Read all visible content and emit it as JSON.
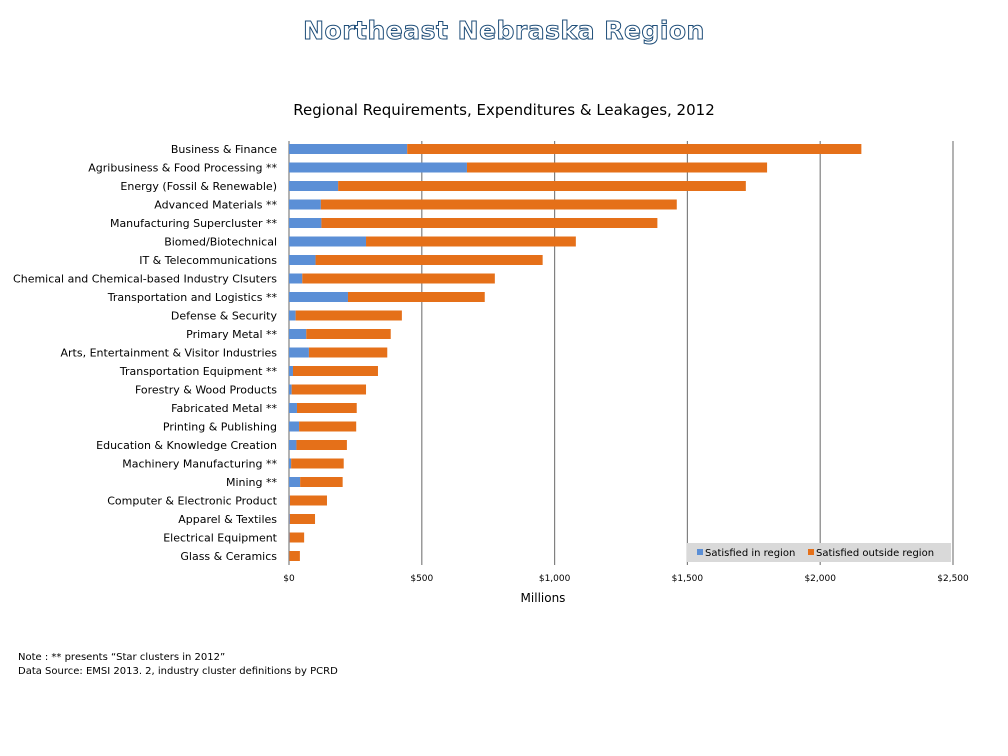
{
  "page": {
    "title": "Northeast Nebraska Region",
    "note": "Note : ** presents  “Star clusters in 2012”",
    "source": "Data Source: EMSI 2013. 2, industry cluster definitions by PCRD"
  },
  "colors": {
    "in_region": "#5b8fd6",
    "outside_region": "#e57019",
    "grid": "#808080"
  },
  "chart_data": {
    "type": "bar",
    "orientation": "horizontal",
    "stacked": true,
    "title": "Regional Requirements, Expenditures & Leakages, 2012",
    "xlabel": "Millions",
    "ylabel": "",
    "xlim": [
      0,
      2500
    ],
    "x_ticks": [
      0,
      500,
      1000,
      1500,
      2000,
      2500
    ],
    "x_tick_labels": [
      "$0",
      "$500",
      "$1,000",
      "$1,500",
      "$2,000",
      "$2,500"
    ],
    "grid": "vertical major gridlines",
    "legend_position": "bottom-right",
    "categories": [
      "Business & Finance",
      "Agribusiness & Food Processing **",
      "Energy (Fossil & Renewable)",
      "Advanced Materials **",
      "Manufacturing Supercluster **",
      "Biomed/Biotechnical",
      "IT & Telecommunications",
      "Chemical and Chemical-based Industry Clsuters",
      "Transportation and Logistics **",
      "Defense & Security",
      "Primary Metal **",
      "Arts, Entertainment & Visitor Industries",
      "Transportation Equipment **",
      "Forestry & Wood Products",
      "Fabricated Metal **",
      "Printing & Publishing",
      "Education & Knowledge Creation",
      "Machinery Manufacturing **",
      "Mining **",
      "Computer & Electronic Product",
      "Apparel & Textiles",
      "Electrical Equipment",
      "Glass & Ceramics"
    ],
    "series": [
      {
        "name": "Satisfied in region",
        "values": [
          445,
          670,
          185,
          120,
          122,
          290,
          100,
          50,
          222,
          25,
          65,
          75,
          15,
          10,
          30,
          38,
          28,
          8,
          42,
          3,
          3,
          2,
          1
        ]
      },
      {
        "name": "Satisfied outside region",
        "values": [
          1710,
          1130,
          1535,
          1340,
          1265,
          790,
          855,
          725,
          515,
          400,
          318,
          295,
          320,
          280,
          225,
          215,
          190,
          198,
          160,
          140,
          95,
          55,
          40
        ]
      }
    ]
  }
}
